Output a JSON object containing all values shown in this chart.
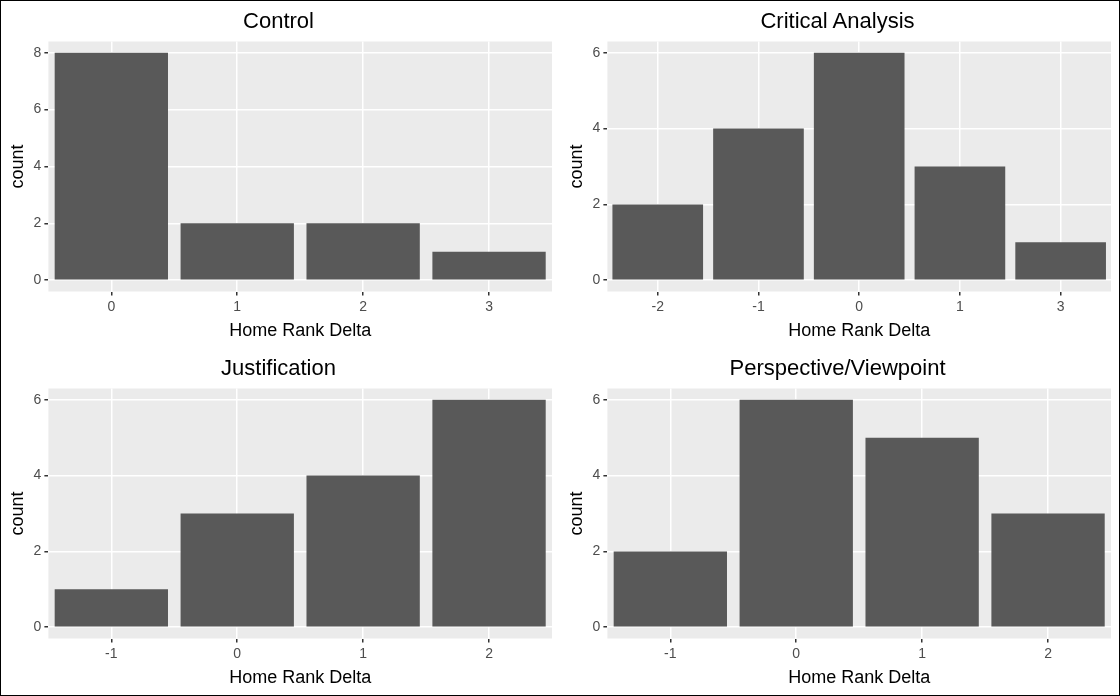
{
  "chart_data": [
    {
      "type": "bar",
      "title": "Control",
      "xlabel": "Home Rank Delta",
      "ylabel": "count",
      "categories": [
        "0",
        "1",
        "2",
        "3"
      ],
      "values": [
        8,
        2,
        2,
        1
      ],
      "color": "#595959",
      "ylim": [
        -0.4,
        8.4
      ],
      "yticks": [
        0,
        2,
        4,
        6,
        8
      ],
      "grid": true
    },
    {
      "type": "bar",
      "title": "Critical Analysis",
      "xlabel": "Home Rank Delta",
      "ylabel": "count",
      "categories": [
        "-2",
        "-1",
        "0",
        "1",
        "3"
      ],
      "values": [
        2,
        4,
        6,
        3,
        1
      ],
      "color": "#595959",
      "ylim": [
        -0.3,
        6.3
      ],
      "yticks": [
        0,
        2,
        4,
        6
      ],
      "grid": true
    },
    {
      "type": "bar",
      "title": "Justification",
      "xlabel": "Home Rank Delta",
      "ylabel": "count",
      "categories": [
        "-1",
        "0",
        "1",
        "2"
      ],
      "values": [
        1,
        3,
        4,
        6
      ],
      "color": "#595959",
      "ylim": [
        -0.3,
        6.3
      ],
      "yticks": [
        0,
        2,
        4,
        6
      ],
      "grid": true
    },
    {
      "type": "bar",
      "title": "Perspective/Viewpoint",
      "xlabel": "Home Rank Delta",
      "ylabel": "count",
      "categories": [
        "-1",
        "0",
        "1",
        "2"
      ],
      "values": [
        2,
        6,
        5,
        3
      ],
      "color": "#595959",
      "ylim": [
        -0.3,
        6.3
      ],
      "yticks": [
        0,
        2,
        4,
        6
      ],
      "grid": true
    }
  ]
}
